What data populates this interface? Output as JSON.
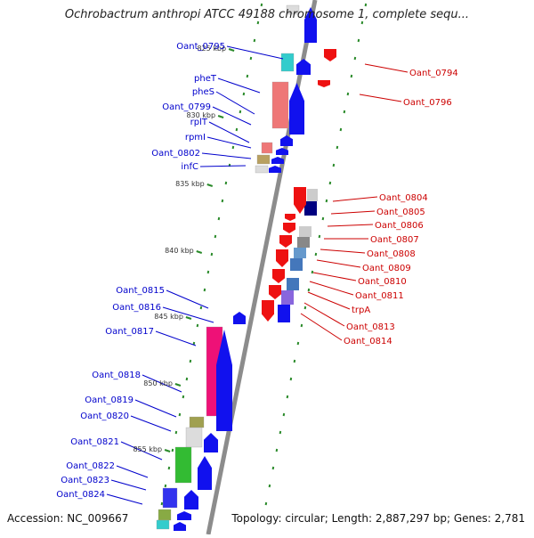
{
  "title": "Ochrobactrum anthropi ATCC 49188 chromosome 1, complete sequ...",
  "accession": "Accession: NC_009667",
  "topology": "Topology: circular; Length: 2,887,297 bp; Genes: 2,781",
  "colors": {
    "backbone": "#8c8c8c",
    "tick": "#2a8a2a",
    "forward_label": "#0000cc",
    "reverse_label": "#cc0000"
  },
  "scale_labels": [
    "825 kbp",
    "830 kbp",
    "835 kbp",
    "840 kbp",
    "845 kbp",
    "850 kbp",
    "855 kbp"
  ],
  "forward_genes": [
    "Oant_0795",
    "pheT",
    "pheS",
    "Oant_0799",
    "rplT",
    "rpmI",
    "Oant_0802",
    "infC",
    "Oant_0815",
    "Oant_0816",
    "Oant_0817",
    "Oant_0818",
    "Oant_0819",
    "Oant_0820",
    "Oant_0821",
    "Oant_0822",
    "Oant_0823",
    "Oant_0824"
  ],
  "reverse_genes": [
    "Oant_0794",
    "Oant_0796",
    "Oant_0804",
    "Oant_0805",
    "Oant_0806",
    "Oant_0807",
    "Oant_0808",
    "Oant_0809",
    "Oant_0810",
    "Oant_0811",
    "trpA",
    "Oant_0813",
    "Oant_0814"
  ]
}
